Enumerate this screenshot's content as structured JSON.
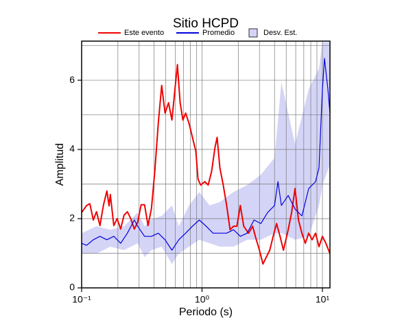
{
  "chart_data": {
    "type": "line",
    "title": "Sitio HCPD",
    "xlabel": "Periodo (s)",
    "ylabel": "Amplitud",
    "xscale": "log",
    "xlim": [
      0.1,
      11.55
    ],
    "ylim": [
      0,
      7.13
    ],
    "xticks": [
      {
        "value": 0.1,
        "label": "10⁻¹"
      },
      {
        "value": 1,
        "label": "10⁰"
      },
      {
        "value": 10,
        "label": "10¹"
      }
    ],
    "yticks": [
      0,
      2,
      4,
      6
    ],
    "xgrid": [
      0.2,
      0.3,
      0.4,
      0.5,
      0.6,
      0.7,
      0.8,
      0.9,
      1,
      2,
      3,
      4,
      5,
      6,
      7,
      8,
      9,
      10
    ],
    "ygrid": [
      1,
      2,
      3,
      4,
      5,
      6,
      7
    ],
    "band": {
      "name": "Desv. Est.",
      "color": "#d4d4f7",
      "x": [
        0.1,
        0.133,
        0.173,
        0.225,
        0.292,
        0.333,
        0.38,
        0.462,
        0.562,
        0.641,
        0.78,
        0.949,
        1.155,
        1.406,
        1.825,
        2.371,
        3.08,
        4.002,
        4.561,
        5.925,
        7.694,
        9.359,
        10.0,
        11.55
      ],
      "upper": [
        1.58,
        1.78,
        1.68,
        1.78,
        2.18,
        1.78,
        1.98,
        2.08,
        2.38,
        1.78,
        2.38,
        2.77,
        2.38,
        2.48,
        2.77,
        2.97,
        3.27,
        3.76,
        5.94,
        4.16,
        5.74,
        6.34,
        7.1,
        7.1
      ],
      "lower": [
        0.99,
        0.99,
        1.19,
        1.09,
        1.29,
        0.89,
        1.09,
        1.19,
        0.69,
        0.99,
        1.19,
        1.39,
        1.29,
        1.19,
        1.19,
        1.39,
        1.39,
        1.58,
        1.58,
        1.39,
        1.49,
        2.38,
        2.97,
        3.56
      ]
    },
    "series": [
      {
        "name": "Este evento",
        "color": "#ee0000",
        "x": [
          0.1,
          0.11,
          0.117,
          0.125,
          0.133,
          0.142,
          0.152,
          0.162,
          0.169,
          0.173,
          0.185,
          0.197,
          0.211,
          0.225,
          0.24,
          0.256,
          0.274,
          0.292,
          0.312,
          0.333,
          0.356,
          0.38,
          0.406,
          0.433,
          0.462,
          0.493,
          0.527,
          0.562,
          0.6,
          0.624,
          0.658,
          0.693,
          0.731,
          0.78,
          0.832,
          0.889,
          0.925,
          0.974,
          1.054,
          1.125,
          1.201,
          1.282,
          1.334,
          1.406,
          1.5,
          1.602,
          1.71,
          1.825,
          1.948,
          2.08,
          2.221,
          2.434,
          2.632,
          2.773,
          3.0,
          3.204,
          3.42,
          3.652,
          3.899,
          4.16,
          4.443,
          4.743,
          5.198,
          5.55,
          5.925,
          6.325,
          6.752,
          7.208,
          7.694,
          8.213,
          8.768,
          9.359,
          10.0,
          10.67,
          11.55
        ],
        "values": [
          2.18,
          2.38,
          2.43,
          1.96,
          2.2,
          1.8,
          2.4,
          2.8,
          2.37,
          2.7,
          1.8,
          2.0,
          1.7,
          2.1,
          2.2,
          2.0,
          1.7,
          1.9,
          2.4,
          2.4,
          1.8,
          2.3,
          3.4,
          4.75,
          5.85,
          5.05,
          5.35,
          4.85,
          5.85,
          6.45,
          5.35,
          4.85,
          5.05,
          4.75,
          4.35,
          3.95,
          3.15,
          2.97,
          3.07,
          2.97,
          3.37,
          4.06,
          4.35,
          3.47,
          2.97,
          2.38,
          1.68,
          1.78,
          1.78,
          2.38,
          1.78,
          1.58,
          1.78,
          1.49,
          1.09,
          0.69,
          0.89,
          1.09,
          1.49,
          1.86,
          1.49,
          1.09,
          1.68,
          2.18,
          2.87,
          1.96,
          1.58,
          1.29,
          1.58,
          1.39,
          1.58,
          1.19,
          1.49,
          1.29,
          0.99
        ]
      },
      {
        "name": "Promedio",
        "color": "#0000dd",
        "x": [
          0.1,
          0.11,
          0.125,
          0.142,
          0.162,
          0.185,
          0.211,
          0.24,
          0.274,
          0.292,
          0.333,
          0.38,
          0.433,
          0.493,
          0.562,
          0.641,
          0.731,
          0.832,
          0.949,
          1.082,
          1.233,
          1.406,
          1.602,
          1.825,
          2.08,
          2.371,
          2.702,
          3.08,
          3.511,
          4.002,
          4.272,
          4.561,
          5.198,
          5.925,
          6.752,
          7.694,
          8.768,
          9.359,
          10.0,
          10.4,
          11.1,
          11.55
        ],
        "values": [
          1.29,
          1.23,
          1.39,
          1.49,
          1.39,
          1.49,
          1.29,
          1.58,
          1.96,
          1.78,
          1.49,
          1.49,
          1.58,
          1.39,
          1.09,
          1.39,
          1.58,
          1.78,
          1.96,
          1.78,
          1.58,
          1.58,
          1.58,
          1.68,
          1.49,
          1.58,
          1.96,
          1.86,
          2.18,
          2.38,
          3.07,
          2.38,
          2.67,
          2.28,
          2.08,
          2.87,
          3.07,
          3.47,
          5.74,
          6.63,
          5.74,
          5.05
        ]
      }
    ]
  }
}
